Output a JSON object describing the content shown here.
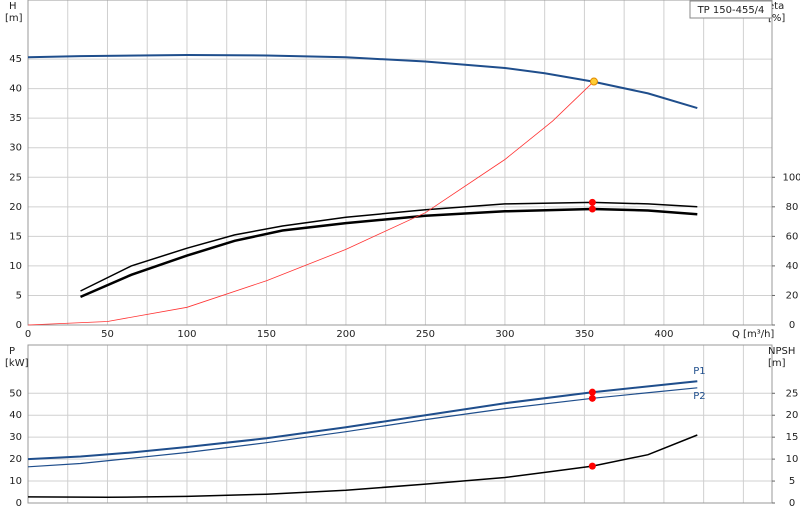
{
  "chart_data": [
    {
      "type": "line",
      "title": "TP 150-455/4",
      "xlabel": "Q [m³/h]",
      "ylabel": [
        "H",
        "[m]"
      ],
      "y2label": [
        "eta",
        "[%]"
      ],
      "xlim": [
        0,
        468
      ],
      "xticks": [
        0,
        50,
        100,
        150,
        200,
        250,
        300,
        350,
        400
      ],
      "xgrid_minor": [
        25,
        75,
        125,
        175,
        225,
        275,
        325,
        375,
        425,
        450
      ],
      "xtick_labels": true,
      "ylim": [
        0,
        55
      ],
      "yticks": [
        0,
        5,
        10,
        15,
        20,
        25,
        30,
        35,
        40,
        45
      ],
      "y2lim": [
        0,
        220
      ],
      "y2ticks": [
        0,
        20,
        40,
        60,
        80,
        100
      ],
      "grid": true,
      "series": [
        {
          "color": "#1f4e8c",
          "linewidth": 2,
          "x": [
            0,
            33,
            100,
            150,
            200,
            250,
            300,
            325,
            355,
            390,
            421
          ],
          "values": [
            45.3,
            45.5,
            45.7,
            45.6,
            45.3,
            44.6,
            43.5,
            42.6,
            41.2,
            39.2,
            36.7
          ]
        },
        {
          "color": "#000000",
          "linewidth": 1.5,
          "axis": "y2",
          "x": [
            33,
            65,
            100,
            130,
            160,
            200,
            250,
            300,
            355,
            390,
            421
          ],
          "values": [
            23,
            40,
            52,
            61,
            67,
            73,
            78,
            82,
            83,
            82,
            80
          ]
        },
        {
          "color": "#000000",
          "linewidth": 2.5,
          "axis": "y2",
          "x": [
            33,
            65,
            100,
            130,
            160,
            200,
            250,
            300,
            355,
            390,
            421
          ],
          "values": [
            19,
            34,
            47,
            57,
            64,
            69,
            74,
            77,
            78.5,
            77.5,
            75
          ]
        },
        {
          "color": "#ff3333",
          "linewidth": 0.8,
          "x": [
            0,
            50,
            100,
            150,
            200,
            250,
            300,
            330,
            357
          ],
          "values": [
            0,
            0.6,
            3,
            7.5,
            12.8,
            19,
            28,
            34.5,
            41.5
          ]
        }
      ],
      "points": [
        {
          "x": 356,
          "y": 41.2,
          "color": "#ffcc33"
        },
        {
          "x": 355,
          "y": 83,
          "axis": "y2",
          "color": "#ff0000"
        },
        {
          "x": 355,
          "y": 78.5,
          "axis": "y2",
          "color": "#ff0000"
        }
      ]
    },
    {
      "type": "line",
      "ylabel": [
        "P",
        "[kW]"
      ],
      "y2label": [
        "NPSH",
        "[m]"
      ],
      "xlim": [
        0,
        468
      ],
      "xticks": [
        0,
        50,
        100,
        150,
        200,
        250,
        300,
        350,
        400
      ],
      "xgrid_minor": [
        25,
        75,
        125,
        175,
        225,
        275,
        325,
        375,
        425,
        450
      ],
      "xtick_labels": false,
      "ylim": [
        0,
        72
      ],
      "yticks": [
        0,
        10,
        20,
        30,
        40,
        50
      ],
      "y2lim": [
        0,
        36
      ],
      "y2ticks": [
        0,
        5,
        10,
        15,
        20,
        25
      ],
      "grid": true,
      "series": [
        {
          "name": "P1",
          "color": "#1f4e8c",
          "linewidth": 2,
          "x": [
            0,
            33,
            65,
            100,
            150,
            200,
            250,
            300,
            355,
            421
          ],
          "values": [
            20,
            21.2,
            23,
            25.5,
            29.5,
            34.5,
            40,
            45.5,
            50.5,
            55.5
          ]
        },
        {
          "name": "P2",
          "color": "#1f4e8c",
          "linewidth": 1.2,
          "x": [
            0,
            33,
            100,
            150,
            200,
            250,
            300,
            355,
            421
          ],
          "values": [
            16.5,
            18,
            23,
            27.5,
            32.5,
            38,
            43,
            47.7,
            52.5
          ]
        },
        {
          "color": "#000000",
          "linewidth": 1.5,
          "axis": "y2",
          "x": [
            0,
            50,
            100,
            150,
            200,
            250,
            300,
            330,
            355,
            390,
            421
          ],
          "values": [
            1.4,
            1.3,
            1.5,
            2.0,
            2.9,
            4.3,
            5.8,
            7.2,
            8.4,
            11,
            15.5
          ]
        }
      ],
      "points": [
        {
          "x": 355,
          "y": 50.5,
          "color": "#ff0000"
        },
        {
          "x": 355,
          "y": 47.7,
          "color": "#ff0000"
        },
        {
          "x": 355,
          "y": 8.4,
          "axis": "y2",
          "color": "#ff0000"
        }
      ]
    }
  ]
}
